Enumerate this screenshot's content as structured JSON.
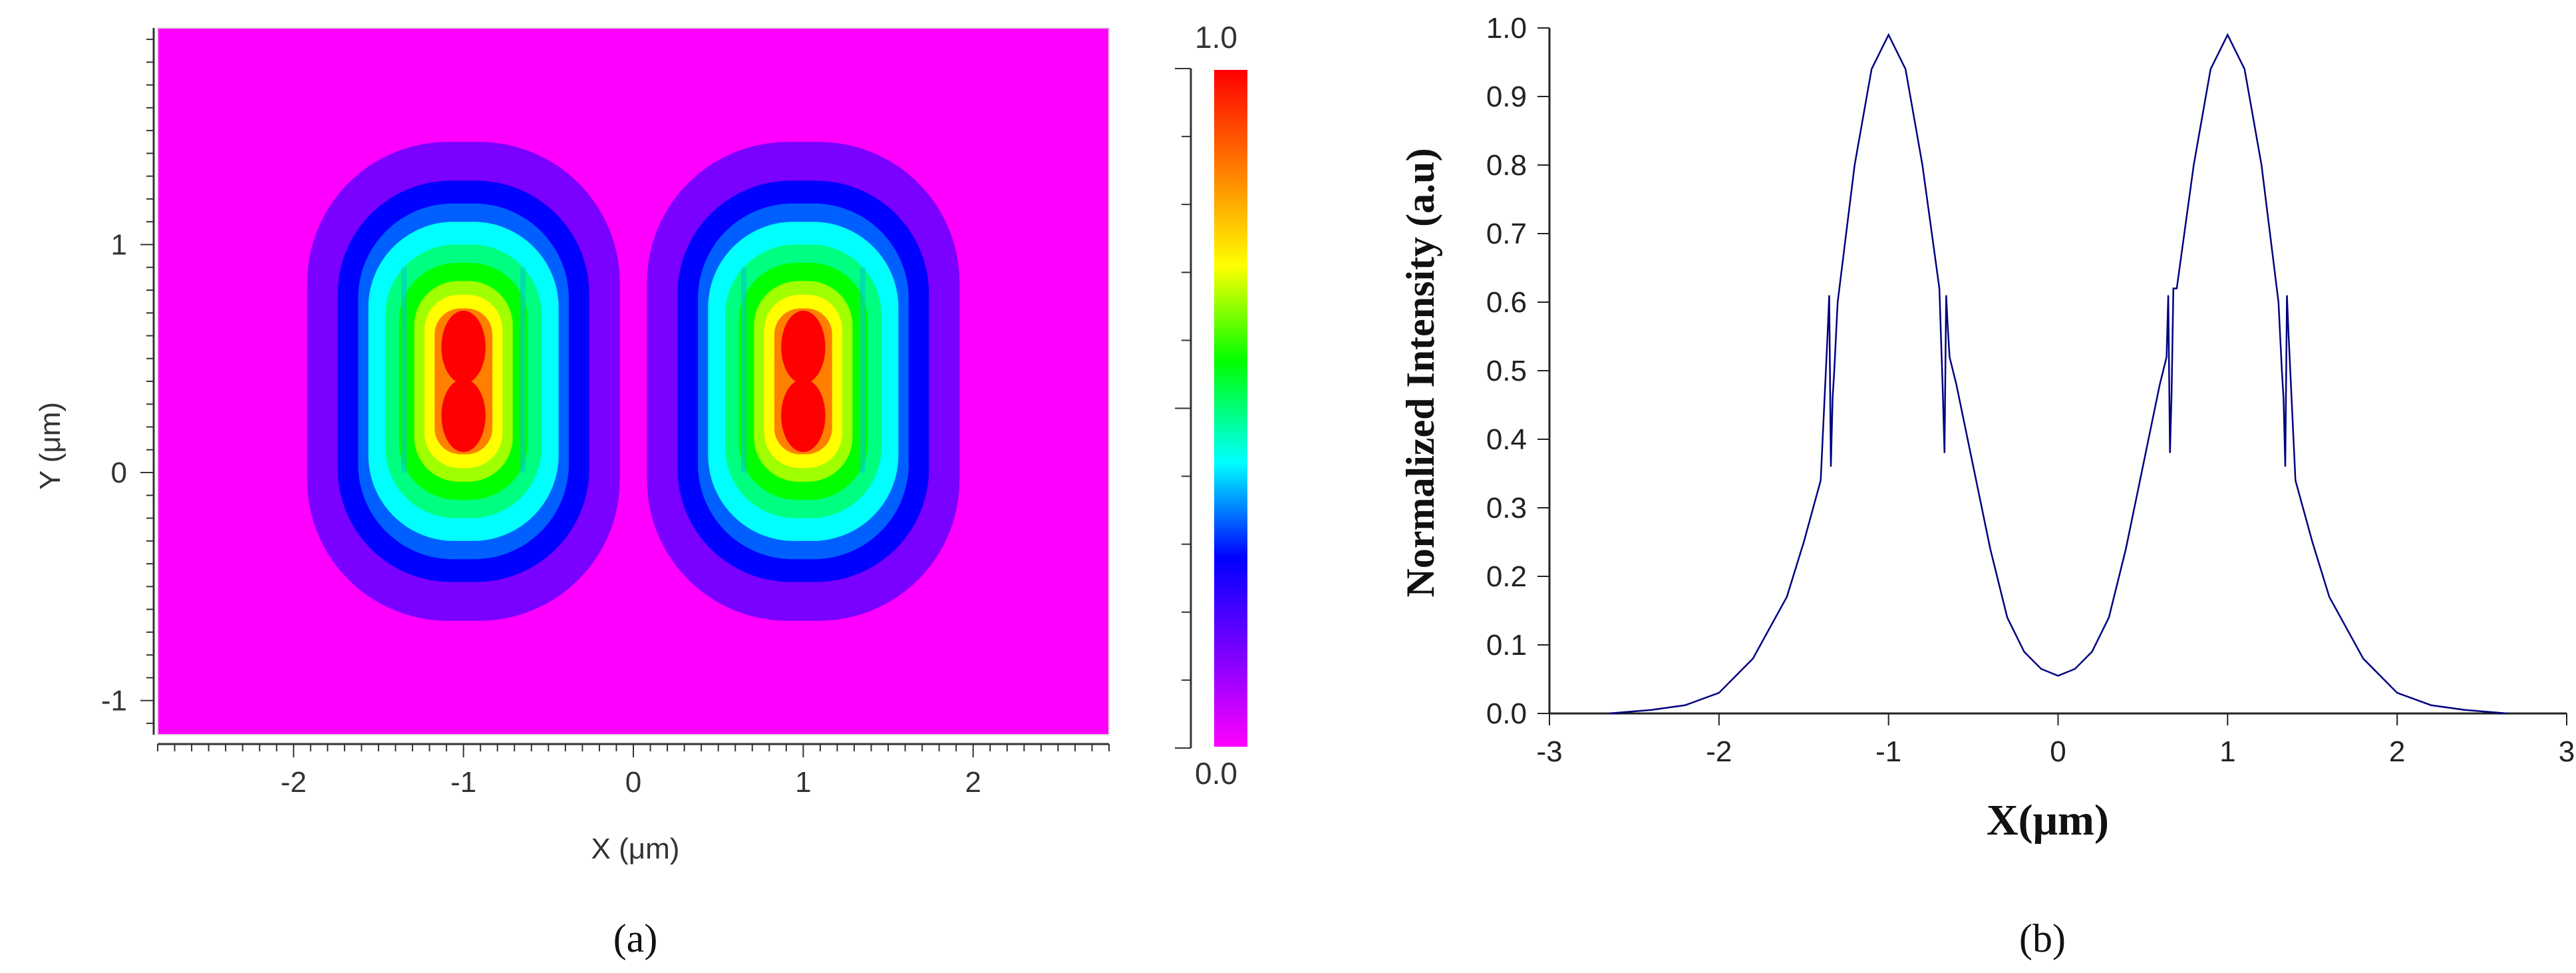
{
  "figure": {
    "panel_a_label": "(a)",
    "panel_b_label": "(b)"
  },
  "chart_data": [
    {
      "type": "heatmap",
      "panel": "a",
      "xlabel": "X (μm)",
      "ylabel": "Y (μm)",
      "xlim": [
        -2.8,
        2.8
      ],
      "ylim": [
        -1.15,
        1.95
      ],
      "x_ticks": [
        -2,
        -1,
        0,
        1,
        2
      ],
      "y_ticks": [
        -1,
        0,
        1
      ],
      "colorscale": [
        "#ff00ff",
        "#7a00ff",
        "#0000ff",
        "#00ffff",
        "#00ff00",
        "#ffff00",
        "#ff8000",
        "#ff0000"
      ],
      "colorbar": {
        "min_label": "0.0",
        "max_label": "1.0",
        "range": [
          0,
          1
        ]
      },
      "peaks": [
        {
          "x": -1.0,
          "y": 0.25
        },
        {
          "x": -1.0,
          "y": 0.55
        },
        {
          "x": 1.0,
          "y": 0.25
        },
        {
          "x": 1.0,
          "y": 0.55
        }
      ],
      "background_value": 0.0
    },
    {
      "type": "line",
      "panel": "b",
      "xlabel": "X(μm)",
      "ylabel": "Normalized Intensity (a.u)",
      "xlim": [
        -3,
        3
      ],
      "ylim": [
        0,
        1
      ],
      "x_ticks": [
        "-3",
        "-2",
        "-1",
        "0",
        "1",
        "2",
        "3"
      ],
      "y_ticks": [
        "0.0",
        "0.1",
        "0.2",
        "0.3",
        "0.4",
        "0.5",
        "0.6",
        "0.7",
        "0.8",
        "0.9",
        "1.0"
      ],
      "grid": false,
      "line_color": "#000080",
      "series": [
        {
          "x": [
            -2.65,
            -2.4,
            -2.2,
            -2.0,
            -1.8,
            -1.6,
            -1.5,
            -1.4,
            -1.36,
            -1.35,
            -1.34,
            -1.33,
            -1.32,
            -1.3,
            -1.2,
            -1.1,
            -1.0,
            -0.9,
            -0.8,
            -0.7,
            -0.68,
            -0.67,
            -0.66,
            -0.65,
            -0.64,
            -0.6,
            -0.5,
            -0.4,
            -0.3,
            -0.2,
            -0.1,
            0.0,
            0.1,
            0.2,
            0.3,
            0.4,
            0.5,
            0.6,
            0.64,
            0.65,
            0.66,
            0.67,
            0.68,
            0.7,
            0.8,
            0.9,
            1.0,
            1.1,
            1.2,
            1.3,
            1.32,
            1.33,
            1.34,
            1.35,
            1.36,
            1.4,
            1.5,
            1.6,
            1.8,
            2.0,
            2.2,
            2.4,
            2.65
          ],
          "y": [
            0.0,
            0.005,
            0.012,
            0.03,
            0.08,
            0.17,
            0.25,
            0.34,
            0.55,
            0.61,
            0.36,
            0.46,
            0.5,
            0.6,
            0.8,
            0.94,
            0.99,
            0.94,
            0.8,
            0.62,
            0.47,
            0.38,
            0.61,
            0.56,
            0.52,
            0.48,
            0.36,
            0.24,
            0.14,
            0.09,
            0.065,
            0.055,
            0.065,
            0.09,
            0.14,
            0.24,
            0.36,
            0.48,
            0.52,
            0.61,
            0.38,
            0.47,
            0.62,
            0.62,
            0.8,
            0.94,
            0.99,
            0.94,
            0.8,
            0.6,
            0.5,
            0.46,
            0.36,
            0.61,
            0.55,
            0.34,
            0.25,
            0.17,
            0.08,
            0.03,
            0.012,
            0.005,
            0.0
          ]
        }
      ]
    }
  ]
}
